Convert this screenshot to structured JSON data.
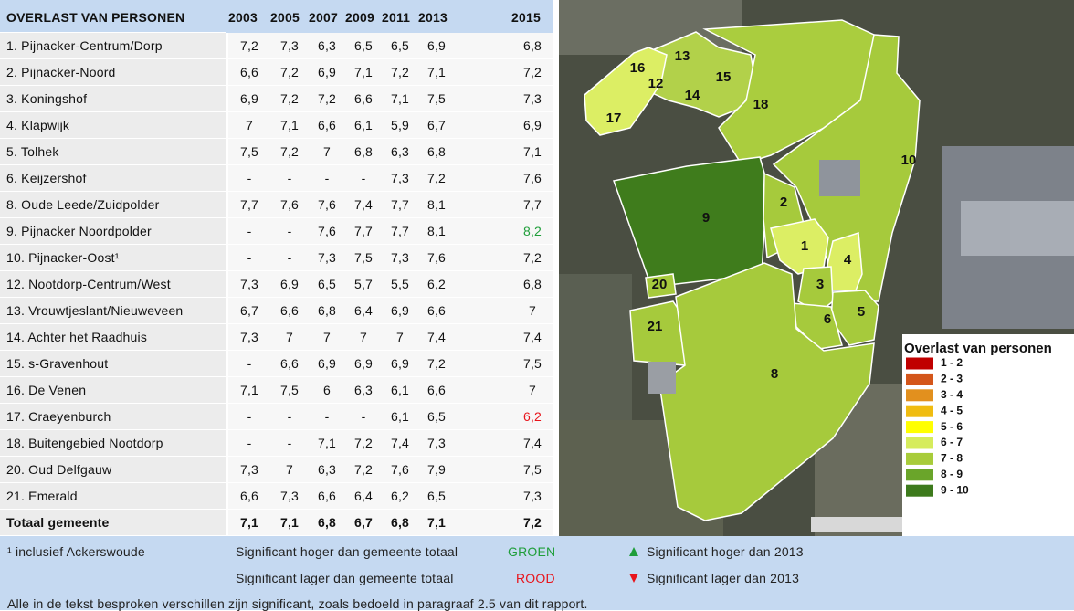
{
  "table": {
    "header": [
      "OVERLAST VAN PERSONEN",
      "2003",
      "2005",
      "2007",
      "2009",
      "2011",
      "2013",
      "2015"
    ],
    "rows": [
      [
        "1. Pijnacker-Centrum/Dorp",
        "7,2",
        "7,3",
        "6,3",
        "6,5",
        "6,5",
        "6,9",
        "6,8"
      ],
      [
        "2. Pijnacker-Noord",
        "6,6",
        "7,2",
        "6,9",
        "7,1",
        "7,2",
        "7,1",
        "7,2"
      ],
      [
        "3. Koningshof",
        "6,9",
        "7,2",
        "7,2",
        "6,6",
        "7,1",
        "7,5",
        "7,3"
      ],
      [
        "4. Klapwijk",
        "7",
        "7,1",
        "6,6",
        "6,1",
        "5,9",
        "6,7",
        "6,9"
      ],
      [
        "5. Tolhek",
        "7,5",
        "7,2",
        "7",
        "6,8",
        "6,3",
        "6,8",
        "7,1"
      ],
      [
        "6. Keijzershof",
        "-",
        "-",
        "-",
        "-",
        "7,3",
        "7,2",
        "7,6"
      ],
      [
        "8. Oude Leede/Zuidpolder",
        "7,7",
        "7,6",
        "7,6",
        "7,4",
        "7,7",
        "8,1",
        "7,7"
      ],
      [
        "9. Pijnacker Noordpolder",
        "-",
        "-",
        "7,6",
        "7,7",
        "7,7",
        "8,1",
        {
          "text": "8,2",
          "color": "#1f9e3a"
        }
      ],
      [
        "10. Pijnacker-Oost¹",
        "-",
        "-",
        "7,3",
        "7,5",
        "7,3",
        "7,6",
        "7,2"
      ],
      [
        "12. Nootdorp-Centrum/West",
        "7,3",
        "6,9",
        "6,5",
        "5,7",
        "5,5",
        "6,2",
        "6,8"
      ],
      [
        "13. Vrouwtjeslant/Nieuweveen",
        "6,7",
        "6,6",
        "6,8",
        "6,4",
        "6,9",
        "6,6",
        "7"
      ],
      [
        "14. Achter het Raadhuis",
        "7,3",
        "7",
        "7",
        "7",
        "7",
        "7,4",
        "7,4"
      ],
      [
        "15. s-Gravenhout",
        "-",
        "6,6",
        "6,9",
        "6,9",
        "6,9",
        "7,2",
        "7,5"
      ],
      [
        "16. De Venen",
        "7,1",
        "7,5",
        "6",
        "6,3",
        "6,1",
        "6,6",
        "7"
      ],
      [
        "17. Craeyenburch",
        "-",
        "-",
        "-",
        "-",
        "6,1",
        "6,5",
        {
          "text": "6,2",
          "color": "#e8141b"
        }
      ],
      [
        "18. Buitengebied Nootdorp",
        "-",
        "-",
        "7,1",
        "7,2",
        "7,4",
        "7,3",
        "7,4"
      ],
      [
        "20. Oud Delfgauw",
        "7,3",
        "7",
        "6,3",
        "7,2",
        "7,6",
        "7,9",
        "7,5"
      ],
      [
        "21. Emerald",
        "6,6",
        "7,3",
        "6,6",
        "6,4",
        "6,2",
        "6,5",
        "7,3"
      ]
    ],
    "total": [
      "Totaal gemeente",
      "7,1",
      "7,1",
      "6,8",
      "6,7",
      "6,8",
      "7,1",
      "7,2"
    ]
  },
  "footer": {
    "note": "¹ inclusief Ackerswoude",
    "legend": [
      {
        "text": "Significant hoger dan gemeente totaal",
        "key": "GROEN",
        "color": "#1f9e3a"
      },
      {
        "text": "Significant lager dan gemeente totaal",
        "key": "ROOD",
        "color": "#e8141b"
      }
    ],
    "trend": [
      "Significant hoger dan 2013",
      "Significant lager dan 2013"
    ],
    "remark": "Alle in de tekst besproken verschillen zijn significant, zoals bedoeld in paragraaf 2.5 van dit rapport."
  },
  "map": {
    "areas": [
      "13",
      "16",
      "12",
      "15",
      "14",
      "18",
      "17",
      "10",
      "2",
      "9",
      "1",
      "4",
      "20",
      "3",
      "6",
      "5",
      "21",
      "8"
    ],
    "legend_title": "Overlast van personen",
    "legend": [
      {
        "label": "1 - 2",
        "color": "#c00000"
      },
      {
        "label": "2 - 3",
        "color": "#d4561a"
      },
      {
        "label": "3 - 4",
        "color": "#e2901e"
      },
      {
        "label": "4 - 5",
        "color": "#f0bc10"
      },
      {
        "label": "5 - 6",
        "color": "#ffff00"
      },
      {
        "label": "6 - 7",
        "color": "#d6ec5c"
      },
      {
        "label": "7 - 8",
        "color": "#a8cc3a"
      },
      {
        "label": "8 - 9",
        "color": "#6aa52a"
      },
      {
        "label": "9 - 10",
        "color": "#3d7a1c"
      }
    ]
  }
}
